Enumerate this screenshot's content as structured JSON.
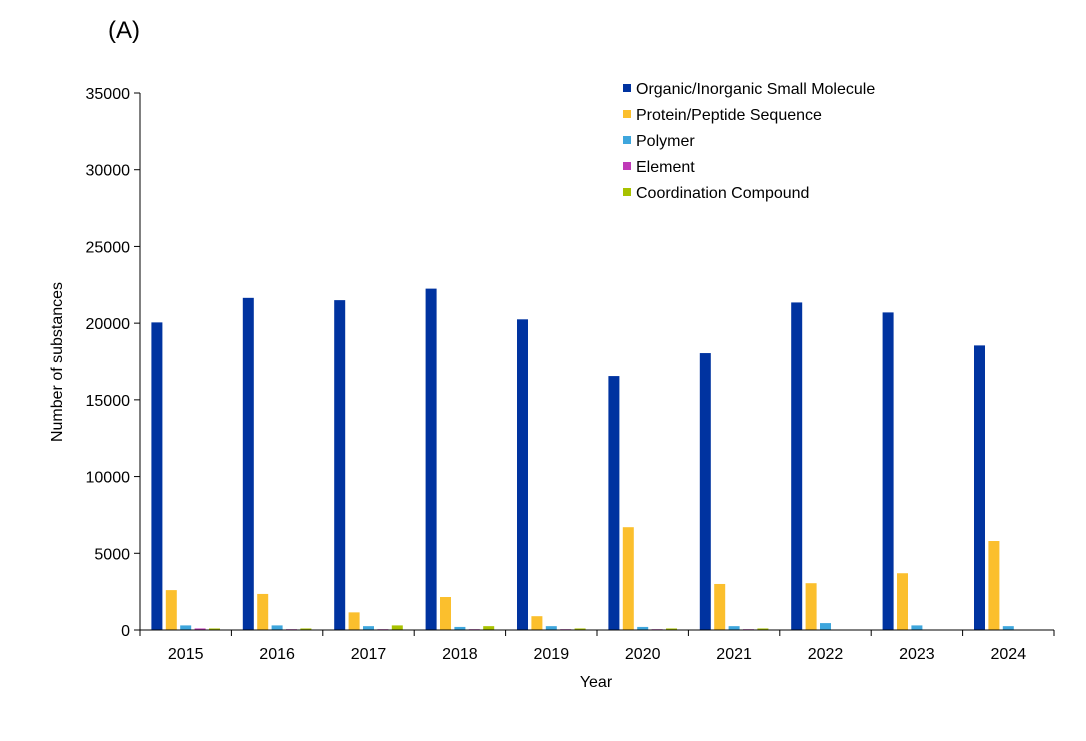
{
  "panel_label": "(A)",
  "colors": {
    "Organic/Inorganic Small Molecule": "#0033a0",
    "Protein/Peptide Sequence": "#fbbf2d",
    "Polymer": "#3ea6dd",
    "Element": "#c03ab8",
    "Coordination Compound": "#a8c200"
  },
  "chart_data": {
    "type": "bar",
    "title": "",
    "xlabel": "Year",
    "ylabel": "Number of substances",
    "ylim": [
      0,
      35000
    ],
    "yticks": [
      0,
      5000,
      10000,
      15000,
      20000,
      25000,
      30000,
      35000
    ],
    "grid": false,
    "legend_position": "top-right",
    "categories": [
      "2015",
      "2016",
      "2017",
      "2018",
      "2019",
      "2020",
      "2021",
      "2022",
      "2023",
      "2024"
    ],
    "series": [
      {
        "name": "Organic/Inorganic Small Molecule",
        "values": [
          20050,
          21650,
          21500,
          22250,
          20250,
          16550,
          18050,
          21350,
          20700,
          18550
        ]
      },
      {
        "name": "Protein/Peptide Sequence",
        "values": [
          2600,
          2350,
          1150,
          2150,
          900,
          6700,
          3000,
          3050,
          3700,
          5800
        ]
      },
      {
        "name": "Polymer",
        "values": [
          300,
          300,
          250,
          200,
          250,
          200,
          250,
          450,
          300,
          250
        ]
      },
      {
        "name": "Element",
        "values": [
          100,
          50,
          50,
          50,
          50,
          50,
          50,
          30,
          30,
          30
        ]
      },
      {
        "name": "Coordination Compound",
        "values": [
          100,
          100,
          300,
          250,
          100,
          100,
          100,
          30,
          30,
          30
        ]
      }
    ]
  }
}
